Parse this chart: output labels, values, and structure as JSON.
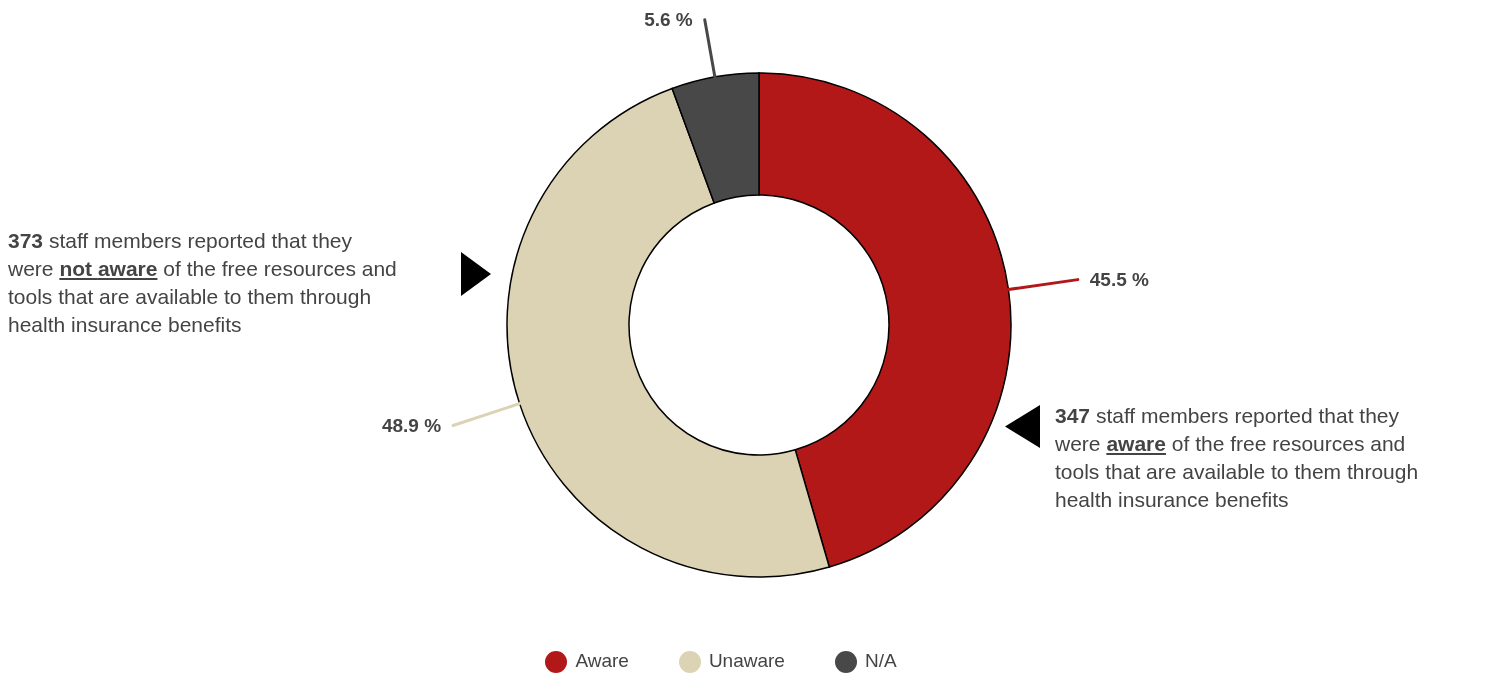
{
  "chart_data": {
    "type": "donut",
    "categories": [
      "Aware",
      "Unaware",
      "N/A"
    ],
    "values": [
      45.5,
      48.9,
      5.6
    ],
    "colors": [
      "#b31818",
      "#dbd3b3",
      "#484848"
    ],
    "value_labels": [
      "45.5 %",
      "48.9 %",
      "5.6 %"
    ],
    "annotations": [
      "373 staff members reported that they were not aware of the free resources and tools that are available to them through health insurance benefits",
      "347 staff members reported that they were aware of the free resources and tools that are available to them through health insurance benefits"
    ],
    "legend": "bottom"
  }
}
